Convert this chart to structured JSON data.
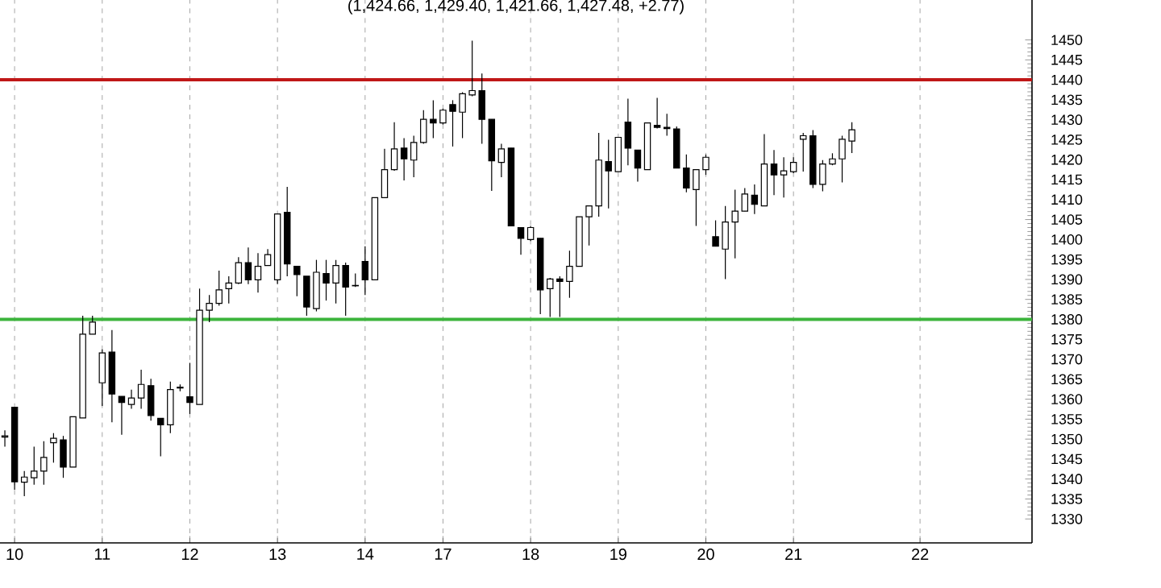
{
  "chart_data": {
    "type": "candlestick",
    "title": "(1,424.66, 1,429.40, 1,421.66, 1,427.48, +2.77)",
    "categories": [
      null,
      "10",
      null,
      null,
      null,
      null,
      null,
      null,
      null,
      null,
      "11",
      null,
      null,
      null,
      null,
      null,
      null,
      null,
      null,
      "12",
      null,
      null,
      null,
      null,
      null,
      null,
      null,
      null,
      "13",
      null,
      null,
      null,
      null,
      null,
      null,
      null,
      null,
      "14",
      null,
      null,
      null,
      null,
      null,
      null,
      null,
      "17",
      null,
      null,
      null,
      null,
      null,
      null,
      null,
      null,
      "18",
      null,
      null,
      null,
      null,
      null,
      null,
      null,
      null,
      "19",
      null,
      null,
      null,
      null,
      null,
      null,
      null,
      null,
      "20",
      null,
      null,
      null,
      null,
      null,
      null,
      null,
      null,
      "21",
      null,
      null,
      null,
      null,
      null,
      null,
      null,
      null,
      null,
      null,
      null,
      null,
      "22",
      null,
      null,
      null,
      null,
      null,
      null,
      null,
      null,
      null,
      null,
      null
    ],
    "ohlc": [
      [
        1350.5,
        1352.2,
        1348.1,
        1350.8
      ],
      [
        1358.0,
        1358.0,
        1337.3,
        1339.3
      ],
      [
        1339.2,
        1342.0,
        1335.7,
        1340.5
      ],
      [
        1340.3,
        1348.1,
        1338.6,
        1342.0
      ],
      [
        1342.0,
        1349.5,
        1338.6,
        1345.4
      ],
      [
        1349.1,
        1351.5,
        1344.1,
        1350.2
      ],
      [
        1349.8,
        1350.8,
        1340.3,
        1343.0
      ],
      [
        1343.0,
        1355.6,
        1343.0,
        1355.6
      ],
      [
        1355.3,
        1380.9,
        1355.3,
        1376.3
      ],
      [
        1376.3,
        1380.9,
        1376.3,
        1379.3
      ],
      [
        1364.1,
        1372.5,
        1358.3,
        1371.6
      ],
      [
        1371.8,
        1377.3,
        1354.2,
        1361.3
      ],
      [
        1360.7,
        1360.7,
        1351.1,
        1359.2
      ],
      [
        1358.7,
        1362.4,
        1357.6,
        1360.3
      ],
      [
        1360.3,
        1367.4,
        1357.6,
        1363.7
      ],
      [
        1363.4,
        1365.1,
        1354.6,
        1355.9
      ],
      [
        1355.2,
        1355.2,
        1345.7,
        1353.6
      ],
      [
        1353.6,
        1364.4,
        1351.5,
        1362.4
      ],
      [
        1362.8,
        1363.7,
        1362.0,
        1363.0
      ],
      [
        1360.6,
        1369.1,
        1356.3,
        1359.2
      ],
      [
        1358.7,
        1387.7,
        1358.7,
        1382.3
      ],
      [
        1382.3,
        1386.1,
        1379.3,
        1384.0
      ],
      [
        1384.0,
        1392.2,
        1383.4,
        1387.4
      ],
      [
        1387.7,
        1390.8,
        1384.0,
        1389.1
      ],
      [
        1389.1,
        1395.6,
        1388.8,
        1394.2
      ],
      [
        1394.2,
        1398.0,
        1388.8,
        1389.9
      ],
      [
        1389.9,
        1396.6,
        1386.7,
        1393.3
      ],
      [
        1393.5,
        1397.6,
        1393.5,
        1396.2
      ],
      [
        1389.9,
        1406.4,
        1388.8,
        1406.4
      ],
      [
        1406.8,
        1413.2,
        1390.8,
        1393.9
      ],
      [
        1393.3,
        1393.3,
        1385.8,
        1391.2
      ],
      [
        1390.8,
        1390.8,
        1380.9,
        1383.1
      ],
      [
        1382.7,
        1394.9,
        1382.0,
        1391.8
      ],
      [
        1391.5,
        1394.9,
        1384.7,
        1389.1
      ],
      [
        1389.1,
        1394.9,
        1384.0,
        1393.5
      ],
      [
        1393.5,
        1394.2,
        1380.9,
        1388.1
      ],
      [
        1388.5,
        1391.5,
        1388.1,
        1388.4
      ],
      [
        1394.5,
        1398.3,
        1386.1,
        1389.9
      ],
      [
        1389.9,
        1410.5,
        1389.9,
        1410.5
      ],
      [
        1410.5,
        1422.7,
        1410.5,
        1417.5
      ],
      [
        1417.5,
        1429.4,
        1417.2,
        1422.7
      ],
      [
        1422.9,
        1425.4,
        1414.8,
        1420.2
      ],
      [
        1419.9,
        1426.0,
        1415.6,
        1424.3
      ],
      [
        1424.3,
        1432.4,
        1424.0,
        1430.1
      ],
      [
        1430.1,
        1434.9,
        1425.4,
        1429.2
      ],
      [
        1429.2,
        1432.8,
        1428.8,
        1432.4
      ],
      [
        1433.8,
        1434.9,
        1423.3,
        1432.1
      ],
      [
        1431.9,
        1436.9,
        1425.4,
        1436.5
      ],
      [
        1436.2,
        1449.8,
        1435.9,
        1437.3
      ],
      [
        1437.3,
        1441.6,
        1424.0,
        1430.1
      ],
      [
        1430.1,
        1430.1,
        1412.2,
        1419.7
      ],
      [
        1419.3,
        1424.0,
        1415.6,
        1422.7
      ],
      [
        1422.9,
        1422.9,
        1403.4,
        1403.4
      ],
      [
        1403.0,
        1403.0,
        1396.2,
        1400.3
      ],
      [
        1400.0,
        1403.4,
        1399.6,
        1403.0
      ],
      [
        1400.3,
        1400.3,
        1381.3,
        1387.4
      ],
      [
        1387.7,
        1390.4,
        1380.6,
        1390.1
      ],
      [
        1390.1,
        1390.8,
        1380.6,
        1389.5
      ],
      [
        1389.5,
        1397.2,
        1385.4,
        1393.3
      ],
      [
        1393.3,
        1405.7,
        1393.3,
        1405.7
      ],
      [
        1405.7,
        1408.4,
        1398.5,
        1408.4
      ],
      [
        1408.4,
        1426.7,
        1405.7,
        1419.9
      ],
      [
        1419.5,
        1425.0,
        1407.8,
        1417.2
      ],
      [
        1417.0,
        1425.6,
        1417.0,
        1425.6
      ],
      [
        1429.4,
        1435.3,
        1418.6,
        1422.9
      ],
      [
        1422.4,
        1422.4,
        1414.5,
        1417.9
      ],
      [
        1417.5,
        1429.2,
        1417.5,
        1429.2
      ],
      [
        1428.6,
        1435.5,
        1427.8,
        1428.1
      ],
      [
        1428.1,
        1431.5,
        1426.0,
        1427.8
      ],
      [
        1427.7,
        1428.3,
        1417.9,
        1417.9
      ],
      [
        1417.9,
        1421.3,
        1411.8,
        1412.9
      ],
      [
        1412.5,
        1417.5,
        1403.4,
        1417.5
      ],
      [
        1417.5,
        1421.3,
        1416.2,
        1420.6
      ],
      [
        1400.7,
        1404.8,
        1398.3,
        1398.3
      ],
      [
        1397.6,
        1408.4,
        1390.1,
        1404.4
      ],
      [
        1404.4,
        1412.5,
        1395.3,
        1407.1
      ],
      [
        1407.1,
        1412.9,
        1407.1,
        1411.4
      ],
      [
        1411.1,
        1413.8,
        1406.4,
        1408.8
      ],
      [
        1408.4,
        1426.4,
        1408.4,
        1418.9
      ],
      [
        1418.9,
        1422.4,
        1411.1,
        1416.2
      ],
      [
        1416.2,
        1420.6,
        1410.5,
        1417.2
      ],
      [
        1417.0,
        1420.6,
        1416.6,
        1419.3
      ],
      [
        1425.1,
        1426.7,
        1417.0,
        1426.0
      ],
      [
        1426.0,
        1427.4,
        1412.9,
        1413.8
      ],
      [
        1413.8,
        1419.9,
        1412.1,
        1418.9
      ],
      [
        1418.9,
        1421.6,
        1418.6,
        1420.2
      ],
      [
        1420.2,
        1426.0,
        1414.3,
        1425.1
      ],
      [
        1424.66,
        1429.4,
        1421.66,
        1427.48
      ],
      null,
      null,
      null,
      null,
      null,
      null,
      null,
      null,
      null,
      null,
      null,
      null,
      null,
      null,
      null,
      null,
      null,
      null
    ],
    "ylim": [
      1324,
      1460
    ],
    "yticks": [
      1330,
      1335,
      1340,
      1345,
      1350,
      1355,
      1360,
      1365,
      1370,
      1375,
      1380,
      1385,
      1390,
      1395,
      1400,
      1405,
      1410,
      1415,
      1420,
      1425,
      1430,
      1435,
      1440,
      1445,
      1450
    ],
    "grid": "x",
    "ref_lines": [
      {
        "axis": "y",
        "value": 1440,
        "color": "#c01818"
      },
      {
        "axis": "y",
        "value": 1380,
        "color": "#3cb43c"
      }
    ]
  }
}
